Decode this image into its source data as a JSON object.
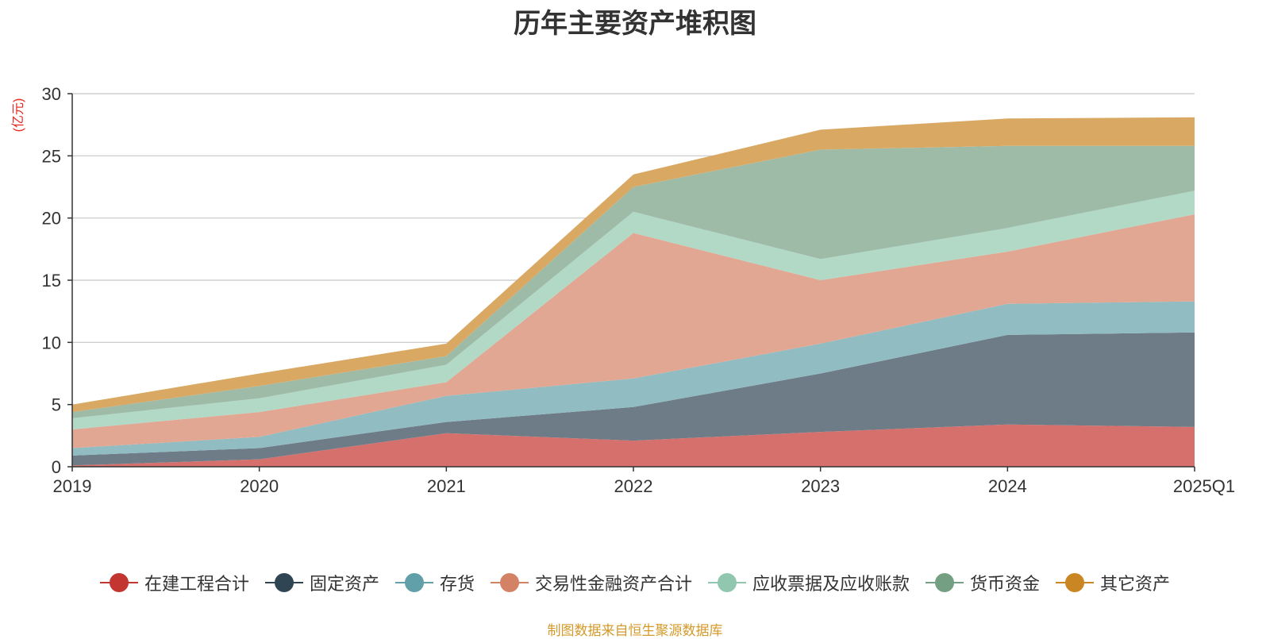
{
  "chart_data": {
    "type": "area",
    "stacked": true,
    "title": "历年主要资产堆积图",
    "ylabel": "(亿元)",
    "xlabel": "",
    "categories": [
      "2019",
      "2020",
      "2021",
      "2022",
      "2023",
      "2024",
      "2025Q1"
    ],
    "ylim": [
      0,
      30
    ],
    "yticks": [
      0,
      5,
      10,
      15,
      20,
      25,
      30
    ],
    "series": [
      {
        "name": "在建工程合计",
        "color": "#c23531",
        "area_color": "#d6706c",
        "values": [
          0.1,
          0.6,
          2.7,
          2.1,
          2.8,
          3.4,
          3.2
        ]
      },
      {
        "name": "固定资产",
        "color": "#2f4554",
        "area_color": "#6e7c87",
        "values": [
          0.8,
          0.9,
          0.9,
          2.7,
          4.7,
          7.2,
          7.6
        ]
      },
      {
        "name": "存货",
        "color": "#61a0a8",
        "area_color": "#90bcc2",
        "values": [
          0.6,
          0.9,
          2.1,
          2.3,
          2.4,
          2.5,
          2.5
        ]
      },
      {
        "name": "交易性金融资产合计",
        "color": "#d48265",
        "area_color": "#e1a792",
        "values": [
          1.5,
          2.0,
          1.1,
          11.7,
          5.1,
          4.2,
          7.0
        ]
      },
      {
        "name": "应收票据及应收账款",
        "color": "#91c7ae",
        "area_color": "#b2d8c6",
        "values": [
          0.9,
          1.1,
          1.4,
          1.7,
          1.7,
          1.9,
          1.9
        ]
      },
      {
        "name": "货币资金",
        "color": "#749f83",
        "area_color": "#9ebba8",
        "values": [
          0.5,
          1.0,
          0.7,
          2.0,
          8.8,
          6.6,
          3.6
        ]
      },
      {
        "name": "其它资产",
        "color": "#ca8622",
        "area_color": "#d9a964",
        "values": [
          0.6,
          1.0,
          1.0,
          1.0,
          1.6,
          2.2,
          2.3
        ]
      }
    ]
  },
  "source_note": "制图数据来自恒生聚源数据库"
}
